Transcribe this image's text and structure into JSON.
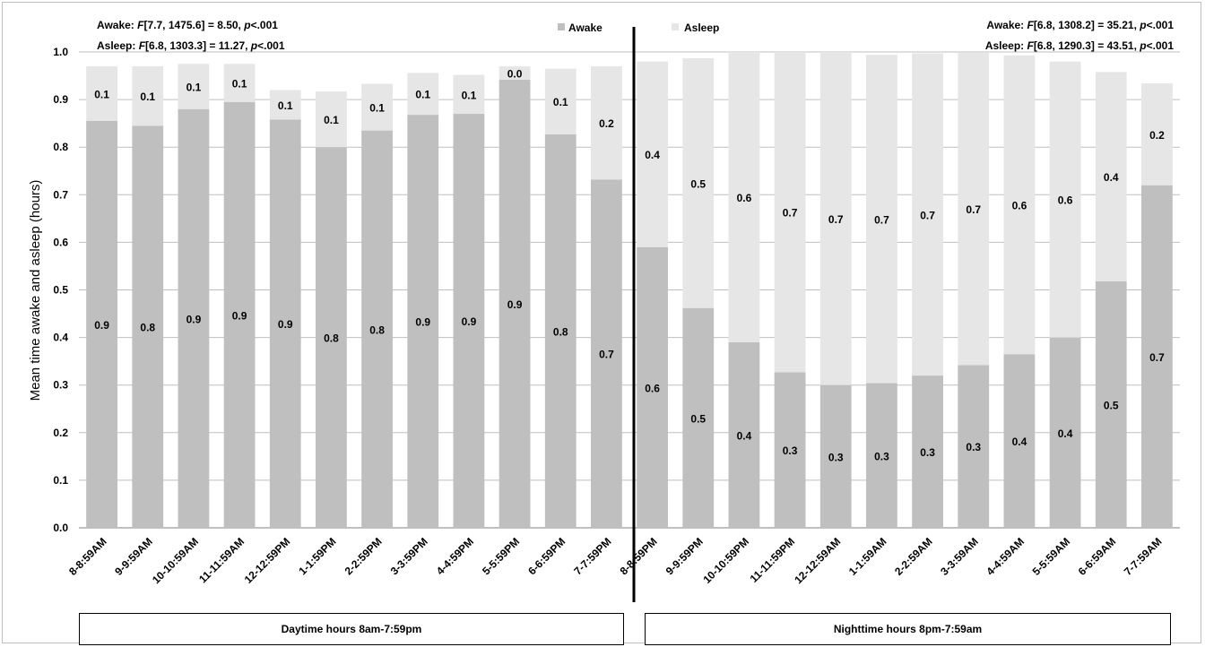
{
  "chart_data": {
    "type": "bar",
    "stacked": true,
    "ylabel": "Mean time awake and asleep (hours)",
    "ylim": [
      0,
      1.0
    ],
    "yticks": [
      "0.0",
      "0.1",
      "0.2",
      "0.3",
      "0.4",
      "0.5",
      "0.6",
      "0.7",
      "0.8",
      "0.9",
      "1.0"
    ],
    "grid": true,
    "categories": [
      "8-8:59AM",
      "9-9:59AM",
      "10-10:59AM",
      "11-11:59AM",
      "12-12:59PM",
      "1-1:59PM",
      "2-2:59PM",
      "3-3:59PM",
      "4-4:59PM",
      "5-5:59PM",
      "6-6:59PM",
      "7-7:59PM",
      "8-8:59PM",
      "9-9:59PM",
      "10-10:59PM",
      "11-11:59PM",
      "12-12:59AM",
      "1-1:59AM",
      "2-2:59AM",
      "3-3:59AM",
      "4-4:59AM",
      "5-5:59AM",
      "6-6:59AM",
      "7-7:59AM"
    ],
    "series": [
      {
        "name": "Awake",
        "color": "#bfbfbf",
        "values": [
          0.855,
          0.845,
          0.88,
          0.895,
          0.858,
          0.8,
          0.835,
          0.868,
          0.87,
          0.942,
          0.827,
          0.732,
          0.59,
          0.462,
          0.39,
          0.327,
          0.3,
          0.304,
          0.32,
          0.342,
          0.365,
          0.4,
          0.518,
          0.72
        ],
        "labels": [
          "0.9",
          "0.8",
          "0.9",
          "0.9",
          "0.9",
          "0.8",
          "0.8",
          "0.9",
          "0.9",
          "0.9",
          "0.8",
          "0.7",
          "0.6",
          "0.5",
          "0.4",
          "0.3",
          "0.3",
          "0.3",
          "0.3",
          "0.3",
          "0.4",
          "0.4",
          "0.5",
          "0.7"
        ]
      },
      {
        "name": "Asleep",
        "color": "#e6e6e6",
        "values": [
          0.115,
          0.125,
          0.095,
          0.08,
          0.062,
          0.117,
          0.098,
          0.088,
          0.082,
          0.028,
          0.138,
          0.238,
          0.39,
          0.525,
          0.61,
          0.673,
          0.7,
          0.69,
          0.677,
          0.656,
          0.628,
          0.58,
          0.44,
          0.214
        ],
        "labels": [
          "0.1",
          "0.1",
          "0.1",
          "0.1",
          "0.1",
          "0.1",
          "0.1",
          "0.1",
          "0.1",
          "0.0",
          "0.1",
          "0.2",
          "0.4",
          "0.5",
          "0.6",
          "0.7",
          "0.7",
          "0.7",
          "0.7",
          "0.7",
          "0.6",
          "0.6",
          "0.4",
          "0.2"
        ]
      }
    ],
    "legend": {
      "placement": "top-center",
      "items": [
        "Awake",
        "Asleep"
      ]
    },
    "annotations": {
      "left_prefix_awake": "Awake: ",
      "left_prefix_asleep": "Asleep: ",
      "right_prefix_awake": "Awake: ",
      "right_prefix_asleep": "Asleep: ",
      "F": "F",
      "p": "p",
      "left_awake_stat": "[7.7, 1475.6] = 8.50, ",
      "left_asleep_stat": "[6.8, 1303.3] = 11.27, ",
      "right_awake_stat": "[6.8, 1308.2] = 35.21, ",
      "right_asleep_stat": "[6.8, 1290.3] = 43.51, ",
      "p_value": "<.001"
    },
    "groups": [
      "Daytime hours 8am-7:59pm",
      "Nighttime hours 8pm-7:59am"
    ]
  }
}
